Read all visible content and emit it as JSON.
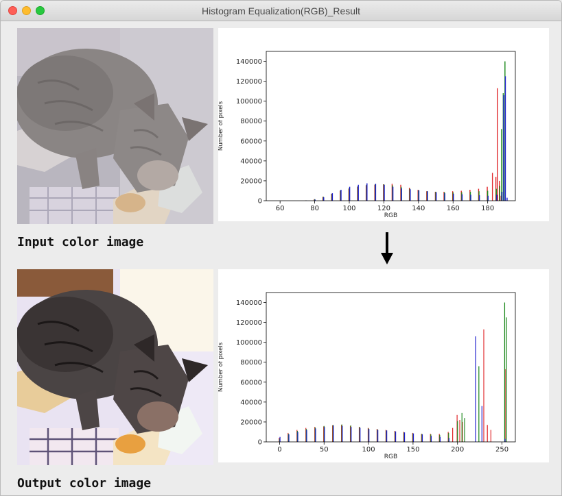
{
  "window": {
    "title": "Histogram Equalization(RGB)_Result"
  },
  "captions": {
    "input": "Input color image",
    "output": "Output color image"
  },
  "icons": {
    "close": "close-icon",
    "minimize": "minimize-icon",
    "zoom": "zoom-icon",
    "arrow": "arrow-down-icon"
  },
  "colors": {
    "red": "#e0262a",
    "green": "#1f8a1f",
    "blue": "#1a1acc"
  },
  "chart_data": [
    {
      "type": "bar",
      "title": "",
      "xlabel": "RGB",
      "ylabel": "Number of pixels",
      "xlim": [
        52,
        196
      ],
      "ylim": [
        0,
        150000
      ],
      "xticks": [
        60,
        80,
        100,
        120,
        140,
        160,
        180
      ],
      "yticks": [
        0,
        20000,
        40000,
        60000,
        80000,
        100000,
        120000,
        140000
      ],
      "grid": false,
      "series": [
        {
          "color": "red",
          "x": [
            75,
            80,
            85,
            90,
            95,
            100,
            105,
            110,
            115,
            120,
            125,
            130,
            135,
            140,
            145,
            150,
            155,
            160,
            165,
            170,
            175,
            180,
            183,
            185,
            186,
            187,
            188
          ],
          "y": [
            300,
            1500,
            4000,
            7000,
            10000,
            12000,
            14000,
            15500,
            16000,
            16500,
            17000,
            16000,
            13000,
            11000,
            9500,
            9000,
            9000,
            9500,
            10000,
            11000,
            12000,
            14000,
            28000,
            24000,
            113000,
            20000,
            5000
          ]
        },
        {
          "color": "green",
          "x": [
            75,
            80,
            85,
            90,
            95,
            100,
            105,
            110,
            115,
            120,
            125,
            130,
            135,
            140,
            145,
            150,
            155,
            160,
            165,
            170,
            175,
            180,
            185,
            187,
            188,
            189,
            190
          ],
          "y": [
            300,
            1500,
            4000,
            7000,
            10500,
            13000,
            14500,
            16000,
            16500,
            16500,
            15500,
            14000,
            12000,
            10500,
            9500,
            9000,
            8500,
            8500,
            8500,
            9000,
            9500,
            10000,
            12000,
            15000,
            72000,
            108000,
            140000
          ]
        },
        {
          "color": "blue",
          "x": [
            75,
            80,
            85,
            90,
            95,
            100,
            105,
            110,
            115,
            120,
            125,
            130,
            135,
            140,
            145,
            150,
            155,
            160,
            165,
            170,
            175,
            180,
            185,
            188,
            189,
            190,
            191
          ],
          "y": [
            200,
            1200,
            3500,
            7500,
            11000,
            14000,
            16000,
            17500,
            17000,
            16000,
            14000,
            12500,
            11500,
            10500,
            9500,
            8500,
            7500,
            7000,
            6500,
            6000,
            5500,
            5000,
            6000,
            9000,
            106000,
            125000,
            3000
          ]
        }
      ]
    },
    {
      "type": "bar",
      "title": "",
      "xlabel": "RGB",
      "ylabel": "Number of pixels",
      "xlim": [
        -15,
        265
      ],
      "ylim": [
        0,
        150000
      ],
      "xticks": [
        0,
        50,
        100,
        150,
        200,
        250
      ],
      "yticks": [
        0,
        20000,
        40000,
        60000,
        80000,
        100000,
        120000,
        140000
      ],
      "grid": false,
      "series": [
        {
          "color": "red",
          "x": [
            0,
            10,
            20,
            30,
            40,
            50,
            60,
            70,
            80,
            90,
            100,
            110,
            120,
            130,
            140,
            150,
            160,
            170,
            180,
            190,
            195,
            200,
            203,
            206,
            230,
            234,
            238,
            254
          ],
          "y": [
            4000,
            9000,
            12000,
            14000,
            15000,
            15500,
            16500,
            17000,
            16000,
            15000,
            14000,
            13000,
            12000,
            11000,
            10000,
            9000,
            8000,
            8000,
            8000,
            10000,
            14000,
            27000,
            22000,
            20000,
            113000,
            17000,
            12000,
            73000
          ]
        },
        {
          "color": "green",
          "x": [
            0,
            10,
            20,
            30,
            40,
            50,
            60,
            70,
            80,
            90,
            100,
            110,
            120,
            130,
            140,
            150,
            160,
            170,
            180,
            190,
            200,
            205,
            208,
            224,
            253,
            255
          ],
          "y": [
            3000,
            8000,
            11000,
            13000,
            14500,
            16000,
            17000,
            17500,
            16500,
            15000,
            13500,
            12500,
            11500,
            10500,
            9500,
            8500,
            8000,
            7500,
            7000,
            9000,
            21000,
            29000,
            24000,
            76000,
            140000,
            125000
          ]
        },
        {
          "color": "blue",
          "x": [
            0,
            10,
            20,
            30,
            40,
            50,
            60,
            70,
            80,
            90,
            100,
            110,
            120,
            130,
            140,
            150,
            160,
            170,
            180,
            190,
            220,
            227,
            253
          ],
          "y": [
            5000,
            7500,
            10000,
            12000,
            13500,
            15000,
            16500,
            16000,
            15000,
            14000,
            13000,
            12000,
            11500,
            10500,
            9500,
            8500,
            7500,
            6000,
            5000,
            4000,
            106000,
            36000,
            3000
          ]
        }
      ]
    }
  ]
}
